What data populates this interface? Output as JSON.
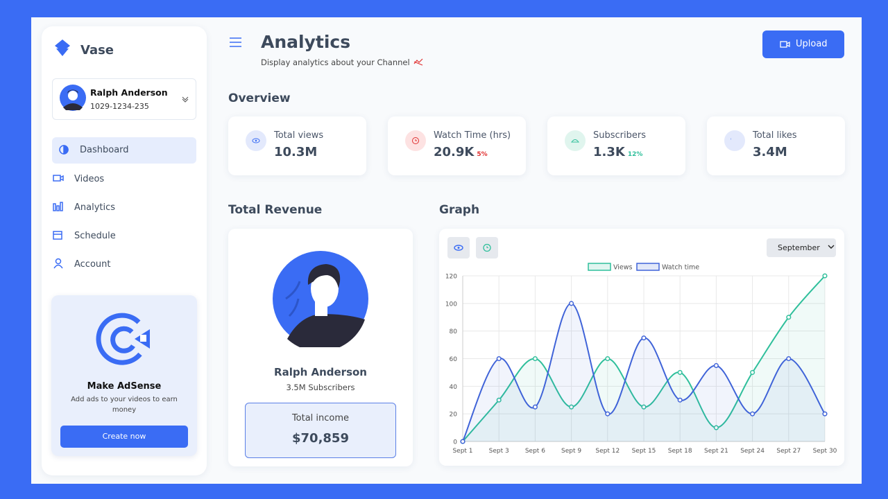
{
  "brand": "Vase",
  "user": {
    "name": "Ralph Anderson",
    "id": "1029-1234-235"
  },
  "nav": [
    "Dashboard",
    "Videos",
    "Analytics",
    "Schedule",
    "Account"
  ],
  "promo": {
    "title": "Make AdSense",
    "text": "Add ads to your videos to earn money",
    "button": "Create now"
  },
  "header": {
    "title": "Analytics",
    "subtitle": "Display analytics about your Channel",
    "button": "Upload"
  },
  "overview": {
    "title": "Overview",
    "cards": [
      {
        "label": "Total views",
        "value": "10.3M"
      },
      {
        "label": "Watch Time (hrs)",
        "value": "20.9K",
        "change": "5%"
      },
      {
        "label": "Subscribers",
        "value": "1.3K",
        "change": "12%"
      },
      {
        "label": "Total likes",
        "value": "3.4M"
      }
    ]
  },
  "revenue": {
    "title": "Total Revenue",
    "name": "Ralph Anderson",
    "subscribers": "3.5M Subscribers",
    "income_label": "Total income",
    "income": "$70,859"
  },
  "graph": {
    "title": "Graph",
    "month": "September",
    "chart_data": {
      "type": "line",
      "categories": [
        "Sept 1",
        "Sept 3",
        "Sept 6",
        "Sept 9",
        "Sept 12",
        "Sept 15",
        "Sept 18",
        "Sept 21",
        "Sept 24",
        "Sept 27",
        "Sept 30"
      ],
      "series": [
        {
          "name": "Views",
          "color": "#2fbf9b",
          "values": [
            0,
            30,
            60,
            25,
            60,
            25,
            50,
            10,
            50,
            90,
            120
          ]
        },
        {
          "name": "Watch time",
          "color": "#3f63d8",
          "values": [
            0,
            60,
            25,
            100,
            20,
            75,
            30,
            55,
            20,
            60,
            20
          ]
        }
      ],
      "ylim": [
        0,
        120
      ],
      "yticks": [
        0,
        20,
        40,
        60,
        80,
        100,
        120
      ],
      "grid": true
    }
  }
}
